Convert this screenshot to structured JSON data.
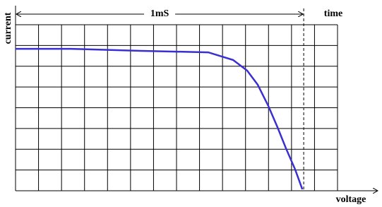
{
  "chart_data": {
    "type": "line",
    "x_label": "voltage",
    "y_label": "current",
    "time_label": "time",
    "interval_label": "1mS",
    "time_marker_x": 12.53,
    "x": [
      0,
      2.39,
      5.47,
      8.38,
      9.46,
      10.07,
      10.53,
      10.99,
      11.39,
      11.76,
      12.16,
      12.47
    ],
    "series": [
      {
        "color": "#3a2fd0",
        "values": [
          6.84,
          6.84,
          6.74,
          6.67,
          6.3,
          5.79,
          5.11,
          4.09,
          3.06,
          2.04,
          1.02,
          0.07
        ]
      }
    ],
    "xlim": [
      0,
      14
    ],
    "ylim": [
      0,
      8
    ],
    "xticks": [
      0,
      1,
      2,
      3,
      4,
      5,
      6,
      7,
      8,
      9,
      10,
      11,
      12,
      13,
      14
    ],
    "yticks": [
      0,
      1,
      2,
      3,
      4,
      5,
      6,
      7,
      8
    ],
    "grid": true
  }
}
